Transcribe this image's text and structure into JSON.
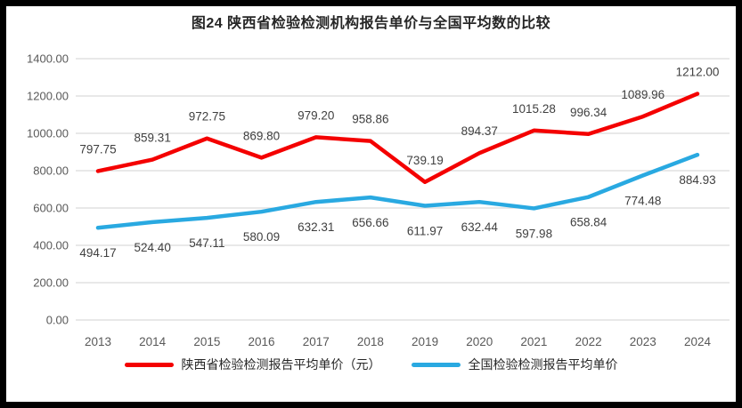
{
  "frame": {
    "border_color": "#000000",
    "background_color": "#ffffff"
  },
  "chart_data": {
    "type": "line",
    "title": "图24 陕西省检验检测机构报告单价与全国平均数的比较",
    "categories": [
      "2013",
      "2014",
      "2015",
      "2016",
      "2017",
      "2018",
      "2019",
      "2020",
      "2021",
      "2022",
      "2023",
      "2024"
    ],
    "series": [
      {
        "name": "陕西省检验检测报告平均单价（元）",
        "color": "#f40000",
        "values": [
          797.75,
          859.31,
          972.75,
          869.8,
          979.2,
          958.86,
          739.19,
          894.37,
          1015.28,
          996.34,
          1089.96,
          1212.0
        ],
        "label_position": "above"
      },
      {
        "name": "全国检验检测报告平均单价",
        "color": "#29a9e1",
        "values": [
          494.17,
          524.4,
          547.11,
          580.09,
          632.31,
          656.66,
          611.97,
          632.44,
          597.98,
          658.84,
          774.48,
          884.93
        ],
        "label_position": "below"
      }
    ],
    "xlabel": "",
    "ylabel": "",
    "ylim": [
      0,
      1400
    ],
    "ytick_step": 200,
    "ytick_labels": [
      "0.00",
      "200.00",
      "400.00",
      "600.00",
      "800.00",
      "1000.00",
      "1200.00",
      "1400.00"
    ],
    "grid": true,
    "gridline_color": "#d9d9d9",
    "axis_text_color": "#595959",
    "data_label_color": "#3f3f3f",
    "legend_position": "bottom"
  }
}
